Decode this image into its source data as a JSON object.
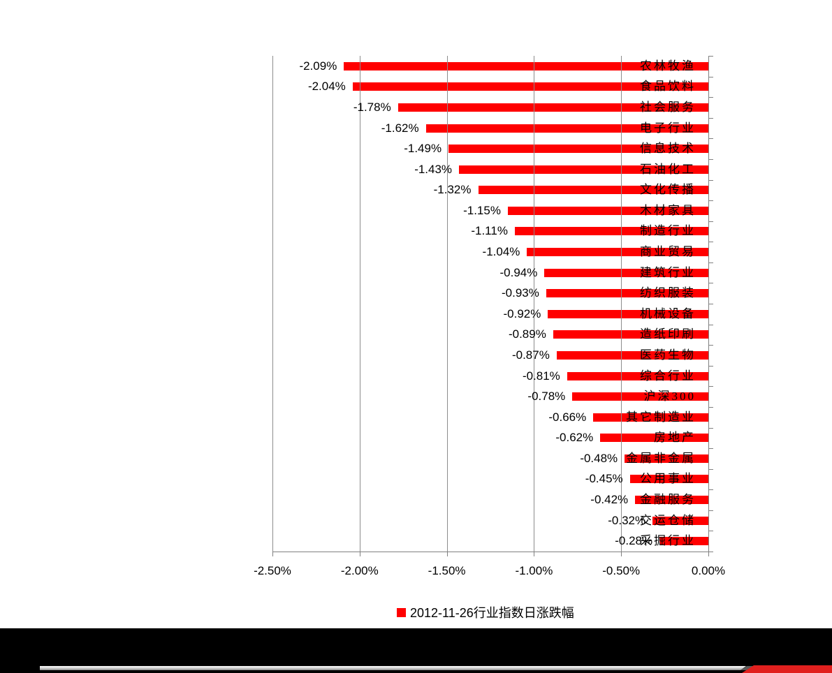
{
  "chart_data": {
    "type": "bar",
    "orientation": "horizontal",
    "title": "",
    "legend": [
      "2012-11-26行业指数日涨跌幅"
    ],
    "legend_position": "bottom-center",
    "legend_marker": "red-square",
    "xlim": [
      -2.5,
      0
    ],
    "x_tick_labels": [
      "-2.50%",
      "-2.00%",
      "-1.50%",
      "-1.00%",
      "-0.50%",
      "0.00%"
    ],
    "grid": true,
    "xlabel": "",
    "ylabel": "",
    "categories": [
      "农林牧渔",
      "食品饮料",
      "社会服务",
      "电子行业",
      "信息技术",
      "石油化工",
      "文化传播",
      "木材家具",
      "制造行业",
      "商业贸易",
      "建筑行业",
      "纺织服装",
      "机械设备",
      "造纸印刷",
      "医药生物",
      "综合行业",
      "沪深300",
      "其它制造业",
      "房地产",
      "金属非金属",
      "公用事业",
      "金融服务",
      "交运仓储",
      "采掘行业"
    ],
    "values": [
      -2.09,
      -2.04,
      -1.78,
      -1.62,
      -1.49,
      -1.43,
      -1.32,
      -1.15,
      -1.11,
      -1.04,
      -0.94,
      -0.93,
      -0.92,
      -0.89,
      -0.87,
      -0.81,
      -0.78,
      -0.66,
      -0.62,
      -0.48,
      -0.45,
      -0.42,
      -0.32,
      -0.28
    ],
    "value_labels": [
      "-2.09%",
      "-2.04%",
      "-1.78%",
      "-1.62%",
      "-1.49%",
      "-1.43%",
      "-1.32%",
      "-1.15%",
      "-1.11%",
      "-1.04%",
      "-0.94%",
      "-0.93%",
      "-0.92%",
      "-0.89%",
      "-0.87%",
      "-0.81%",
      "-0.78%",
      "-0.66%",
      "-0.62%",
      "-0.48%",
      "-0.45%",
      "-0.42%",
      "-0.32%",
      "-0.28%"
    ]
  },
  "colors": {
    "bar": "#ff0000",
    "gridline": "#8c8c8c",
    "axis": "#808080",
    "label_text": "#000000",
    "panel_background": "#ffffff",
    "footer_band": "#000000",
    "footer_accent": "#e1201e"
  }
}
